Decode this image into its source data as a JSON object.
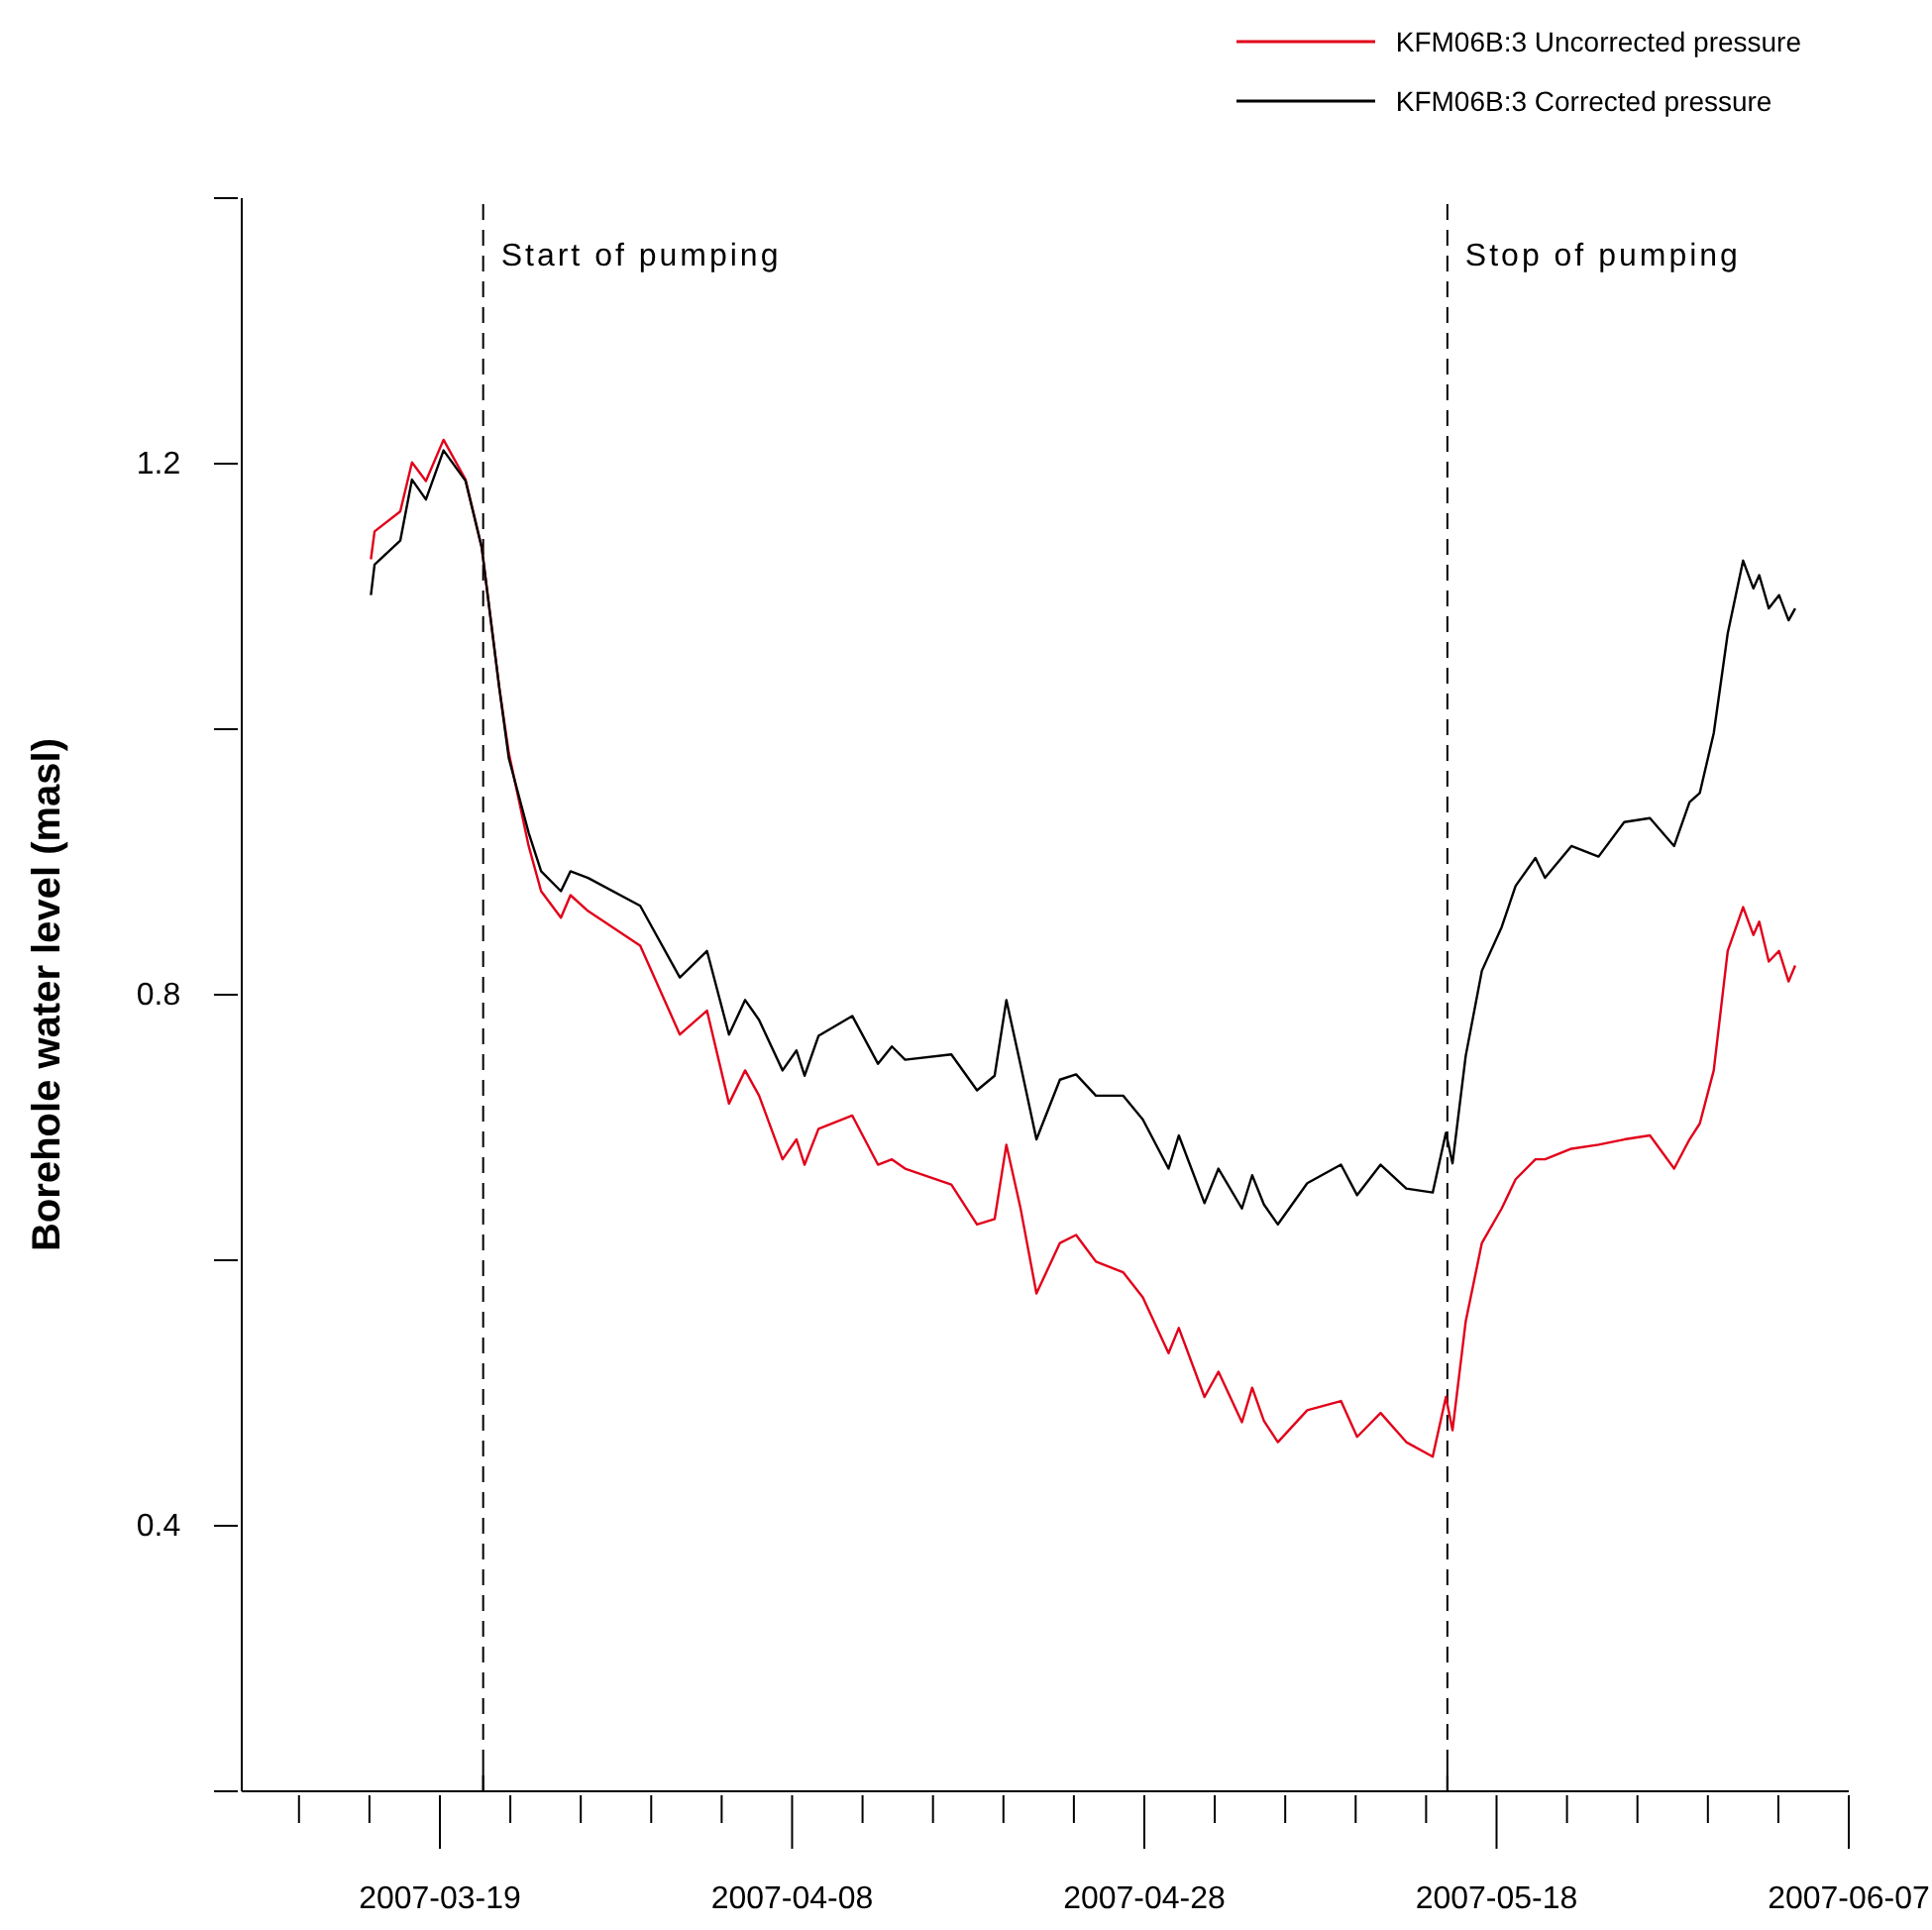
{
  "chart_data": {
    "type": "line",
    "ylabel": "Borehole water level (masl)",
    "x": [
      "2007-03-15T02:00",
      "2007-03-15T07:00",
      "2007-03-16T18:00",
      "2007-03-17T10:00",
      "2007-03-18T05:00",
      "2007-03-19T05:00",
      "2007-03-20T11:00",
      "2007-03-21T09:00",
      "2007-03-22T09:00",
      "2007-03-22T22:00",
      "2007-03-24T01:00",
      "2007-03-24T18:00",
      "2007-03-25T21:00",
      "2007-03-26T10:00",
      "2007-03-27T10:00",
      "2007-03-30T09:00",
      "2007-04-01T15:00",
      "2007-04-03T04:00",
      "2007-04-04T10:00",
      "2007-04-05T08:00",
      "2007-04-06T03:00",
      "2007-04-07T11:00",
      "2007-04-08T06:00",
      "2007-04-08T17:00",
      "2007-04-09T12:00",
      "2007-04-11T10:00",
      "2007-04-12T21:00",
      "2007-04-13T16:00",
      "2007-04-14T10:00",
      "2007-04-17T01:00",
      "2007-04-18T12:00",
      "2007-04-19T12:00",
      "2007-04-20T04:00",
      "2007-04-20T23:00",
      "2007-04-21T21:00",
      "2007-04-23T05:00",
      "2007-04-24T03:00",
      "2007-04-25T06:00",
      "2007-04-26T19:00",
      "2007-04-27T22:00",
      "2007-04-29T09:00",
      "2007-04-29T23:00",
      "2007-05-01T10:00",
      "2007-05-02T05:00",
      "2007-05-03T13:00",
      "2007-05-04T03:00",
      "2007-05-04T19:00",
      "2007-05-05T14:00",
      "2007-05-07T06:00",
      "2007-05-09T04:00",
      "2007-05-10T02:00",
      "2007-05-11T10:00",
      "2007-05-12T21:00",
      "2007-05-14T09:00",
      "2007-05-15T03:00",
      "2007-05-15T12:00",
      "2007-05-16T06:00",
      "2007-05-17T04:00",
      "2007-05-18T07:00",
      "2007-05-19T02:00",
      "2007-05-20T05:00",
      "2007-05-20T18:00",
      "2007-05-22T06:00",
      "2007-05-23T19:00",
      "2007-05-25T06:00",
      "2007-05-26T17:00",
      "2007-05-28T02:00",
      "2007-05-28T23:00",
      "2007-05-29T13:00",
      "2007-05-30T08:00",
      "2007-05-31T03:00",
      "2007-06-01T00:00",
      "2007-06-01T14:00",
      "2007-06-01T22:00",
      "2007-06-02T11:00",
      "2007-06-03T01:00",
      "2007-06-03T14:00",
      "2007-06-03T23:00"
    ],
    "series": [
      {
        "name": "KFM06B:3 Uncorrected pressure",
        "color": "#e2001a",
        "values": [
          1.128,
          1.149,
          1.164,
          1.201,
          1.187,
          1.218,
          1.188,
          1.137,
          1.031,
          0.982,
          0.912,
          0.878,
          0.858,
          0.875,
          0.863,
          0.837,
          0.77,
          0.788,
          0.718,
          0.743,
          0.724,
          0.676,
          0.691,
          0.672,
          0.699,
          0.709,
          0.672,
          0.676,
          0.669,
          0.657,
          0.627,
          0.631,
          0.687,
          0.64,
          0.575,
          0.613,
          0.619,
          0.599,
          0.591,
          0.572,
          0.53,
          0.549,
          0.497,
          0.516,
          0.478,
          0.504,
          0.479,
          0.463,
          0.487,
          0.494,
          0.467,
          0.485,
          0.463,
          0.452,
          0.497,
          0.472,
          0.554,
          0.613,
          0.639,
          0.661,
          0.676,
          0.676,
          0.684,
          0.687,
          0.691,
          0.694,
          0.669,
          0.691,
          0.703,
          0.743,
          0.833,
          0.866,
          0.845,
          0.855,
          0.825,
          0.833,
          0.81,
          0.822
        ]
      },
      {
        "name": "KFM06B:3 Corrected pressure",
        "color": "#000000",
        "values": [
          1.101,
          1.124,
          1.142,
          1.188,
          1.173,
          1.21,
          1.187,
          1.137,
          1.031,
          0.978,
          0.922,
          0.893,
          0.878,
          0.893,
          0.888,
          0.867,
          0.813,
          0.833,
          0.77,
          0.796,
          0.781,
          0.743,
          0.758,
          0.739,
          0.769,
          0.784,
          0.748,
          0.761,
          0.751,
          0.755,
          0.728,
          0.739,
          0.796,
          0.748,
          0.691,
          0.736,
          0.74,
          0.724,
          0.724,
          0.706,
          0.669,
          0.694,
          0.643,
          0.669,
          0.639,
          0.664,
          0.642,
          0.627,
          0.658,
          0.672,
          0.649,
          0.672,
          0.654,
          0.651,
          0.696,
          0.673,
          0.754,
          0.818,
          0.851,
          0.882,
          0.903,
          0.888,
          0.912,
          0.904,
          0.93,
          0.933,
          0.912,
          0.945,
          0.952,
          0.997,
          1.072,
          1.127,
          1.106,
          1.116,
          1.091,
          1.101,
          1.082,
          1.091
        ]
      }
    ],
    "xlim": [
      "2007-03-07T18:00",
      "2007-06-07"
    ],
    "xticks": [
      {
        "value": "2007-03-11",
        "label": null
      },
      {
        "value": "2007-03-15",
        "label": null
      },
      {
        "value": "2007-03-19",
        "label": "2007-03-19"
      },
      {
        "value": "2007-03-23",
        "label": null
      },
      {
        "value": "2007-03-27",
        "label": null
      },
      {
        "value": "2007-03-31",
        "label": null
      },
      {
        "value": "2007-04-04",
        "label": null
      },
      {
        "value": "2007-04-08",
        "label": "2007-04-08"
      },
      {
        "value": "2007-04-12",
        "label": null
      },
      {
        "value": "2007-04-16",
        "label": null
      },
      {
        "value": "2007-04-20",
        "label": null
      },
      {
        "value": "2007-04-24",
        "label": null
      },
      {
        "value": "2007-04-28",
        "label": "2007-04-28"
      },
      {
        "value": "2007-05-02",
        "label": null
      },
      {
        "value": "2007-05-06",
        "label": null
      },
      {
        "value": "2007-05-10",
        "label": null
      },
      {
        "value": "2007-05-14",
        "label": null
      },
      {
        "value": "2007-05-18",
        "label": "2007-05-18"
      },
      {
        "value": "2007-05-22",
        "label": null
      },
      {
        "value": "2007-05-26",
        "label": null
      },
      {
        "value": "2007-05-30",
        "label": null
      },
      {
        "value": "2007-06-03",
        "label": null
      },
      {
        "value": "2007-06-07",
        "label": "2007-06-07"
      }
    ],
    "ylim": [
      0.2,
      1.4
    ],
    "yticks": [
      {
        "value": 0.2,
        "label": null
      },
      {
        "value": 0.4,
        "label": "0.4"
      },
      {
        "value": 0.6,
        "label": null
      },
      {
        "value": 0.8,
        "label": "0.8"
      },
      {
        "value": 1.0,
        "label": null
      },
      {
        "value": 1.2,
        "label": "1.2"
      },
      {
        "value": 1.4,
        "label": null
      }
    ],
    "ref_lines": [
      {
        "axis": "x",
        "value": "2007-03-21T11:00",
        "label": "Start of pumping",
        "line_style": "dashed",
        "color": "#000000"
      },
      {
        "axis": "x",
        "value": "2007-05-15T05:00",
        "label": "Stop of pumping",
        "line_style": "dashed",
        "color": "#000000"
      }
    ],
    "legend": "top right",
    "marker": "none",
    "line_style": "solid"
  }
}
